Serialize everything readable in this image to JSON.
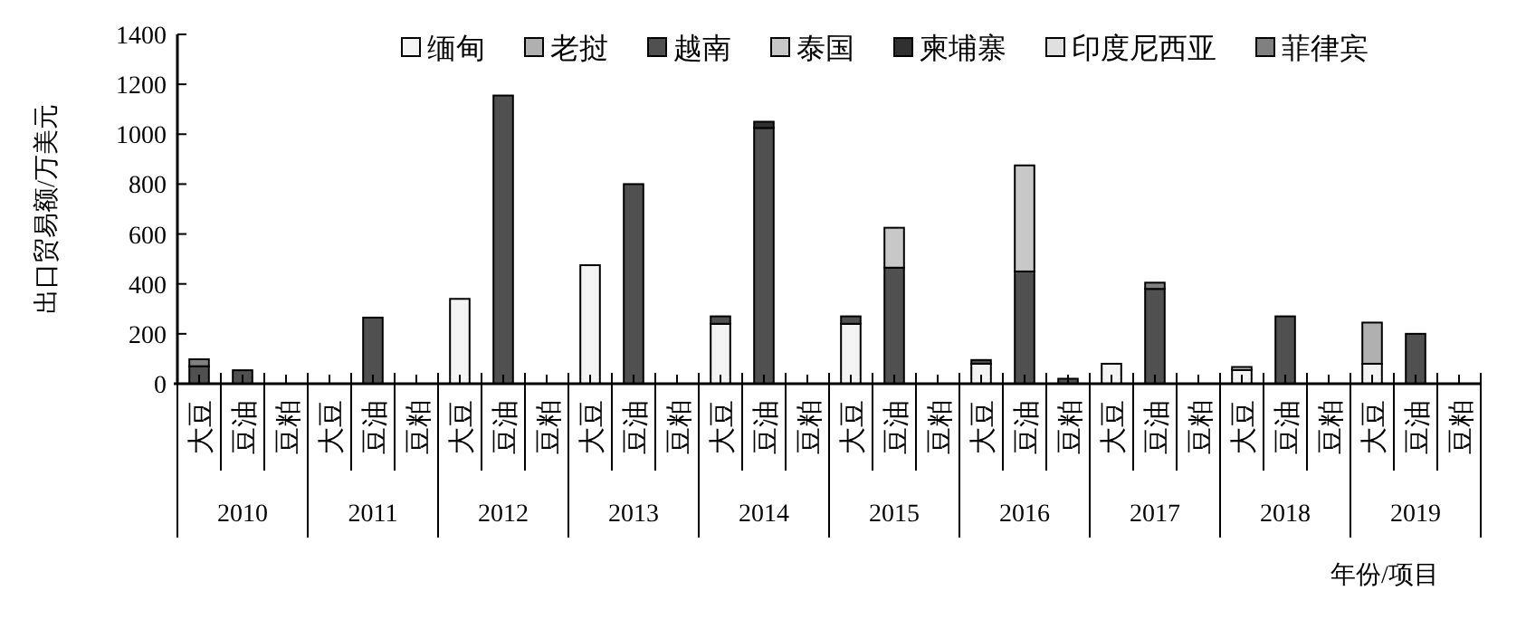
{
  "chart_data": {
    "type": "bar",
    "stacked": true,
    "ylabel": "出口贸易额/万美元",
    "xlabel": "年份/项目",
    "ylim": [
      0,
      1400
    ],
    "yticks": [
      0,
      200,
      400,
      600,
      800,
      1000,
      1200,
      1400
    ],
    "grid": false,
    "legend": "top",
    "categories": [
      "大豆",
      "豆油",
      "豆粕",
      "大豆",
      "豆油",
      "豆粕",
      "大豆",
      "豆油",
      "豆粕",
      "大豆",
      "豆油",
      "豆粕",
      "大豆",
      "豆油",
      "豆粕",
      "大豆",
      "豆油",
      "豆粕",
      "大豆",
      "豆油",
      "豆粕",
      "大豆",
      "豆油",
      "豆粕",
      "大豆",
      "豆油",
      "豆粕",
      "大豆",
      "豆油",
      "豆粕"
    ],
    "annotations": [
      "2010",
      "2011",
      "2012",
      "2013",
      "2014",
      "2015",
      "2016",
      "2017",
      "2018",
      "2019"
    ],
    "series": [
      {
        "name": "缅甸",
        "color": "#f4f4f4",
        "values": [
          null,
          null,
          null,
          null,
          null,
          null,
          340,
          null,
          null,
          475,
          null,
          null,
          240,
          null,
          null,
          240,
          null,
          null,
          80,
          null,
          null,
          80,
          null,
          null,
          55,
          null,
          null,
          80,
          null,
          null
        ]
      },
      {
        "name": "老挝",
        "color": "#b0b0b0",
        "values": [
          null,
          null,
          null,
          null,
          null,
          null,
          null,
          null,
          null,
          null,
          null,
          null,
          null,
          null,
          null,
          null,
          null,
          null,
          null,
          null,
          null,
          null,
          null,
          null,
          null,
          null,
          null,
          165,
          null,
          null
        ]
      },
      {
        "name": "越南",
        "color": "#505050",
        "values": [
          70,
          54,
          null,
          null,
          265,
          null,
          null,
          1155,
          null,
          null,
          800,
          null,
          30,
          1025,
          null,
          30,
          465,
          null,
          15,
          450,
          20,
          null,
          380,
          null,
          null,
          270,
          null,
          null,
          200,
          null
        ]
      },
      {
        "name": "泰国",
        "color": "#c8c8c8",
        "values": [
          null,
          null,
          null,
          null,
          null,
          null,
          null,
          null,
          null,
          null,
          null,
          null,
          null,
          null,
          null,
          null,
          160,
          null,
          null,
          425,
          null,
          null,
          null,
          null,
          12,
          null,
          null,
          null,
          null,
          null
        ]
      },
      {
        "name": "柬埔寨",
        "color": "#303030",
        "values": [
          null,
          null,
          null,
          null,
          null,
          null,
          null,
          null,
          null,
          null,
          null,
          null,
          null,
          25,
          null,
          null,
          null,
          null,
          null,
          null,
          null,
          null,
          null,
          null,
          null,
          null,
          null,
          null,
          null,
          null
        ]
      },
      {
        "name": "印度尼西亚",
        "color": "#e0e0e0",
        "values": [
          null,
          null,
          null,
          null,
          null,
          null,
          null,
          null,
          null,
          null,
          null,
          null,
          null,
          null,
          null,
          null,
          null,
          null,
          null,
          null,
          null,
          null,
          null,
          null,
          null,
          null,
          null,
          null,
          null,
          null
        ]
      },
      {
        "name": "菲律宾",
        "color": "#808080",
        "values": [
          28,
          null,
          null,
          null,
          null,
          null,
          null,
          null,
          null,
          null,
          null,
          null,
          null,
          null,
          null,
          null,
          null,
          null,
          null,
          null,
          null,
          null,
          25,
          null,
          null,
          null,
          null,
          null,
          null,
          null
        ]
      }
    ]
  }
}
